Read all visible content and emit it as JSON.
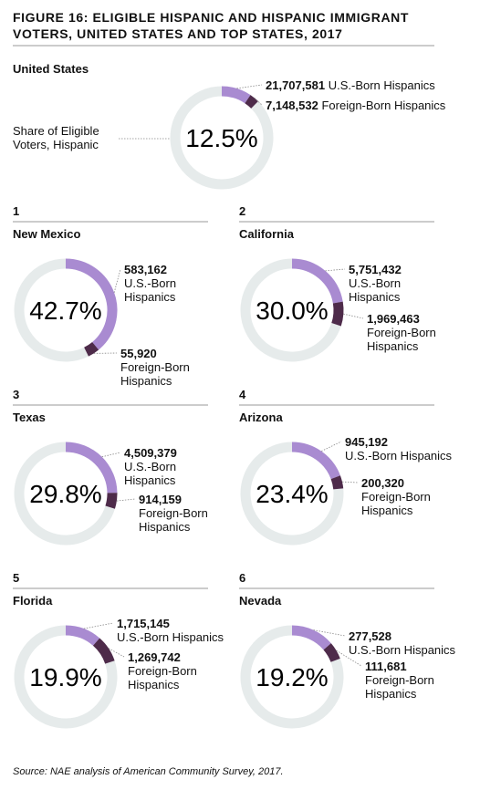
{
  "title": "FIGURE 16: ELIGIBLE HISPANIC AND HISPANIC IMMIGRANT VOTERS, UNITED STATES AND TOP STATES, 2017",
  "source": "Source: NAE analysis of American Community Survey, 2017.",
  "chart_data": [
    {
      "type": "donut",
      "title": "United States",
      "annotation": "Share of Eligible Voters, Hispanic",
      "share": {
        "value": 12.5,
        "label": "12.5%"
      },
      "series": [
        {
          "name": "U.S.-Born Hispanics",
          "color": "#a98bd1",
          "values": [
            21707581
          ],
          "value_labels": [
            "21,707,581"
          ]
        },
        {
          "name": "Foreign-Born Hispanics",
          "color": "#4e2b4a",
          "values": [
            7148532
          ],
          "value_labels": [
            "7,148,532"
          ]
        }
      ]
    },
    {
      "type": "donut",
      "rank": 1,
      "title": "New Mexico",
      "share": {
        "value": 42.7,
        "label": "42.7%"
      },
      "series": [
        {
          "name": "U.S.-Born Hispanics",
          "color": "#a98bd1",
          "values": [
            583162
          ],
          "value_labels": [
            "583,162"
          ]
        },
        {
          "name": "Foreign-Born Hispanics",
          "color": "#4e2b4a",
          "values": [
            55920
          ],
          "value_labels": [
            "55,920"
          ]
        }
      ]
    },
    {
      "type": "donut",
      "rank": 2,
      "title": "California",
      "share": {
        "value": 30.0,
        "label": "30.0%"
      },
      "series": [
        {
          "name": "U.S.-Born Hispanics",
          "color": "#a98bd1",
          "values": [
            5751432
          ],
          "value_labels": [
            "5,751,432"
          ]
        },
        {
          "name": "Foreign-Born Hispanics",
          "color": "#4e2b4a",
          "values": [
            1969463
          ],
          "value_labels": [
            "1,969,463"
          ]
        }
      ]
    },
    {
      "type": "donut",
      "rank": 3,
      "title": "Texas",
      "share": {
        "value": 29.8,
        "label": "29.8%"
      },
      "series": [
        {
          "name": "U.S.-Born Hispanics",
          "color": "#a98bd1",
          "values": [
            4509379
          ],
          "value_labels": [
            "4,509,379"
          ]
        },
        {
          "name": "Foreign-Born Hispanics",
          "color": "#4e2b4a",
          "values": [
            914159
          ],
          "value_labels": [
            "914,159"
          ]
        }
      ]
    },
    {
      "type": "donut",
      "rank": 4,
      "title": "Arizona",
      "share": {
        "value": 23.4,
        "label": "23.4%"
      },
      "series": [
        {
          "name": "U.S.-Born Hispanics",
          "color": "#a98bd1",
          "values": [
            945192
          ],
          "value_labels": [
            "945,192"
          ]
        },
        {
          "name": "Foreign-Born Hispanics",
          "color": "#4e2b4a",
          "values": [
            200320
          ],
          "value_labels": [
            "200,320"
          ]
        }
      ]
    },
    {
      "type": "donut",
      "rank": 5,
      "title": "Florida",
      "share": {
        "value": 19.9,
        "label": "19.9%"
      },
      "series": [
        {
          "name": "U.S.-Born Hispanics",
          "color": "#a98bd1",
          "values": [
            1715145
          ],
          "value_labels": [
            "1,715,145"
          ]
        },
        {
          "name": "Foreign-Born Hispanics",
          "color": "#4e2b4a",
          "values": [
            1269742
          ],
          "value_labels": [
            "1,269,742"
          ]
        }
      ]
    },
    {
      "type": "donut",
      "rank": 6,
      "title": "Nevada",
      "share": {
        "value": 19.2,
        "label": "19.2%"
      },
      "series": [
        {
          "name": "U.S.-Born Hispanics",
          "color": "#a98bd1",
          "values": [
            277528
          ],
          "value_labels": [
            "277,528"
          ]
        },
        {
          "name": "Foreign-Born Hispanics",
          "color": "#4e2b4a",
          "values": [
            111681
          ],
          "value_labels": [
            "111,681"
          ]
        }
      ]
    }
  ]
}
